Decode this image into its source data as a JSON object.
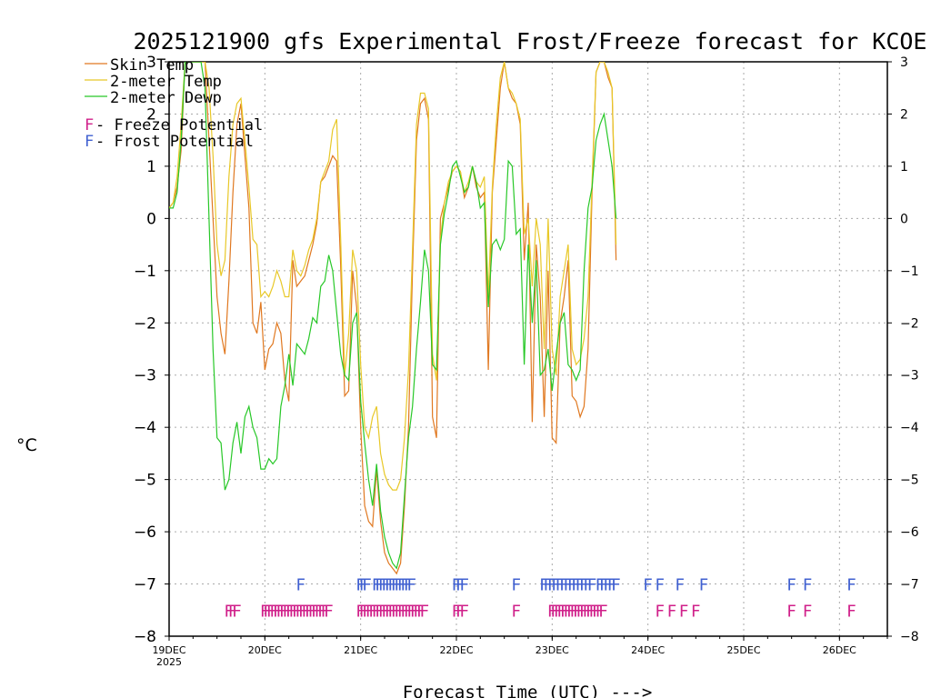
{
  "chart_data": {
    "type": "line",
    "title": "2025121900 gfs Experimental Frost/Freeze forecast for KCOE",
    "xlabel": "Forecast Time (UTC) --->",
    "ylabel": "°C",
    "ylim": [
      -8,
      3
    ],
    "xlim": [
      0,
      180
    ],
    "yticks": [
      -8,
      -7,
      -6,
      -5,
      -4,
      -3,
      -2,
      -1,
      0,
      1,
      2,
      3
    ],
    "xticks": [
      {
        "hour": 0,
        "label": "19DEC",
        "sub": "2025"
      },
      {
        "hour": 24,
        "label": "20DEC"
      },
      {
        "hour": 48,
        "label": "21DEC"
      },
      {
        "hour": 72,
        "label": "22DEC"
      },
      {
        "hour": 96,
        "label": "23DEC"
      },
      {
        "hour": 120,
        "label": "24DEC"
      },
      {
        "hour": 144,
        "label": "25DEC"
      },
      {
        "hour": 168,
        "label": "26DEC"
      }
    ],
    "grid": true,
    "colors": {
      "skin": "#e07820",
      "temp": "#e8c828",
      "dewp": "#28c828",
      "freeze": "#d0208a",
      "frost": "#4060d0"
    },
    "legend": [
      {
        "label": "Skin Temp",
        "color": "#e07820"
      },
      {
        "label": "2-meter Temp",
        "color": "#e8c828"
      },
      {
        "label": "2-meter Dewp",
        "color": "#28c828"
      }
    ],
    "flag_legend": [
      {
        "letter": "F",
        "text": " - Freeze Potential",
        "color": "#d0208a"
      },
      {
        "letter": "F",
        "text": " - Frost Potential",
        "color": "#4060d0"
      }
    ],
    "series": [
      {
        "name": "Skin Temp",
        "key": "skin",
        "x": [
          0,
          1,
          2,
          3,
          4,
          5,
          6,
          7,
          8,
          9,
          10,
          11,
          12,
          13,
          14,
          15,
          16,
          17,
          18,
          19,
          20,
          21,
          22,
          23,
          24,
          25,
          26,
          27,
          28,
          29,
          30,
          31,
          32,
          33,
          34,
          35,
          36,
          37,
          38,
          39,
          40,
          41,
          42,
          43,
          44,
          45,
          46,
          47,
          48,
          49,
          50,
          51,
          52,
          53,
          54,
          55,
          56,
          57,
          58,
          59,
          60,
          61,
          62,
          63,
          64,
          65,
          66,
          67,
          68,
          69,
          70,
          71,
          72,
          73,
          74,
          75,
          76,
          77,
          78,
          79,
          80,
          81,
          82,
          83,
          84,
          85,
          86,
          87,
          88,
          89,
          90,
          91,
          92,
          93,
          94,
          95,
          96,
          97,
          98,
          99,
          100,
          101,
          102,
          103,
          104,
          105,
          106,
          107,
          108,
          109,
          110,
          111,
          112,
          113,
          114,
          115,
          116,
          117,
          118,
          119,
          120
        ],
        "y": [
          0.2,
          0.3,
          0.6,
          1.3,
          3.0,
          3.0,
          3.0,
          3.0,
          3.0,
          3.0,
          1.5,
          0.0,
          -1.5,
          -2.2,
          -2.6,
          -1.2,
          0.5,
          1.8,
          2.2,
          1.2,
          0.2,
          -2.0,
          -2.2,
          -1.6,
          -2.9,
          -2.5,
          -2.4,
          -2.0,
          -2.2,
          -3.1,
          -3.5,
          -0.8,
          -1.3,
          -1.2,
          -1.1,
          -0.8,
          -0.5,
          -0.1,
          0.7,
          0.8,
          1.0,
          1.2,
          1.1,
          -0.9,
          -3.4,
          -3.3,
          -1.0,
          -1.7,
          -4.0,
          -5.5,
          -5.8,
          -5.9,
          -4.8,
          -5.8,
          -6.4,
          -6.6,
          -6.7,
          -6.8,
          -6.6,
          -5.5,
          -4.0,
          -1.0,
          1.5,
          2.2,
          2.3,
          1.9,
          -3.8,
          -4.2,
          0.0,
          0.3,
          0.6,
          0.9,
          1.0,
          0.9,
          0.4,
          0.6,
          1.0,
          0.6,
          0.4,
          0.5,
          -2.9,
          0.5,
          1.5,
          2.5,
          3.0,
          2.5,
          2.3,
          2.2,
          1.8,
          -0.8,
          0.3,
          -3.9,
          -0.5,
          -1.5,
          -3.8,
          -1.0,
          -4.2,
          -4.3,
          -2.0,
          -1.5,
          -0.8,
          -3.4,
          -3.5,
          -3.8,
          -3.6,
          -2.5,
          0.5,
          2.8,
          3.0,
          3.0,
          2.7,
          2.5,
          -0.8,
          null,
          null,
          null,
          null,
          null,
          null,
          null,
          null
        ]
      },
      {
        "name": "2-meter Temp",
        "key": "temp",
        "x": [
          0,
          1,
          2,
          3,
          4,
          5,
          6,
          7,
          8,
          9,
          10,
          11,
          12,
          13,
          14,
          15,
          16,
          17,
          18,
          19,
          20,
          21,
          22,
          23,
          24,
          25,
          26,
          27,
          28,
          29,
          30,
          31,
          32,
          33,
          34,
          35,
          36,
          37,
          38,
          39,
          40,
          41,
          42,
          43,
          44,
          45,
          46,
          47,
          48,
          49,
          50,
          51,
          52,
          53,
          54,
          55,
          56,
          57,
          58,
          59,
          60,
          61,
          62,
          63,
          64,
          65,
          66,
          67,
          68,
          69,
          70,
          71,
          72,
          73,
          74,
          75,
          76,
          77,
          78,
          79,
          80,
          81,
          82,
          83,
          84,
          85,
          86,
          87,
          88,
          89,
          90,
          91,
          92,
          93,
          94,
          95,
          96,
          97,
          98,
          99,
          100,
          101,
          102,
          103,
          104,
          105,
          106,
          107,
          108,
          109,
          110,
          111,
          112,
          113,
          114,
          115,
          116,
          117,
          118,
          119,
          120
        ],
        "y": [
          0.2,
          0.3,
          0.8,
          1.8,
          3.0,
          3.0,
          3.0,
          3.0,
          3.0,
          3.0,
          2.5,
          1.2,
          -0.5,
          -1.1,
          -0.8,
          0.8,
          1.8,
          2.2,
          2.3,
          1.5,
          0.6,
          -0.4,
          -0.5,
          -1.5,
          -1.4,
          -1.5,
          -1.3,
          -1.0,
          -1.2,
          -1.5,
          -1.5,
          -0.6,
          -1.0,
          -1.1,
          -0.9,
          -0.6,
          -0.4,
          0.0,
          0.7,
          0.9,
          1.1,
          1.7,
          1.9,
          -0.4,
          -3.0,
          -2.2,
          -0.6,
          -1.0,
          -2.8,
          -4.0,
          -4.2,
          -3.8,
          -3.6,
          -4.5,
          -4.9,
          -5.1,
          -5.2,
          -5.2,
          -5.0,
          -4.2,
          -2.9,
          -0.6,
          1.8,
          2.4,
          2.4,
          2.1,
          -2.6,
          -3.1,
          -0.4,
          0.3,
          0.7,
          0.9,
          1.0,
          0.9,
          0.5,
          0.7,
          1.0,
          0.7,
          0.6,
          0.8,
          -1.5,
          0.6,
          1.8,
          2.7,
          3.0,
          2.5,
          2.4,
          2.2,
          1.9,
          -0.3,
          0.0,
          -1.3,
          0.0,
          -0.5,
          -2.5,
          0.0,
          -2.5,
          -3.0,
          -1.5,
          -1.0,
          -0.5,
          -2.5,
          -2.8,
          -2.7,
          -2.3,
          -1.5,
          0.7,
          2.8,
          3.0,
          3.0,
          2.8,
          2.5,
          -0.5,
          null,
          null,
          null,
          null,
          null,
          null,
          null,
          null
        ]
      },
      {
        "name": "2-meter Dewp",
        "key": "dewp",
        "x": [
          0,
          1,
          2,
          3,
          4,
          5,
          6,
          7,
          8,
          9,
          10,
          11,
          12,
          13,
          14,
          15,
          16,
          17,
          18,
          19,
          20,
          21,
          22,
          23,
          24,
          25,
          26,
          27,
          28,
          29,
          30,
          31,
          32,
          33,
          34,
          35,
          36,
          37,
          38,
          39,
          40,
          41,
          42,
          43,
          44,
          45,
          46,
          47,
          48,
          49,
          50,
          51,
          52,
          53,
          54,
          55,
          56,
          57,
          58,
          59,
          60,
          61,
          62,
          63,
          64,
          65,
          66,
          67,
          68,
          69,
          70,
          71,
          72,
          73,
          74,
          75,
          76,
          77,
          78,
          79,
          80,
          81,
          82,
          83,
          84,
          85,
          86,
          87,
          88,
          89,
          90,
          91,
          92,
          93,
          94,
          95,
          96,
          97,
          98,
          99,
          100,
          101,
          102,
          103,
          104,
          105,
          106,
          107,
          108,
          109,
          110,
          111,
          112,
          113,
          114,
          115,
          116,
          117,
          118,
          119,
          120
        ],
        "y": [
          0.2,
          0.2,
          0.5,
          1.5,
          3.0,
          3.0,
          3.0,
          3.0,
          3.0,
          2.5,
          0.0,
          -2.5,
          -4.2,
          -4.3,
          -5.2,
          -5.0,
          -4.3,
          -3.9,
          -4.5,
          -3.8,
          -3.6,
          -4.0,
          -4.2,
          -4.8,
          -4.8,
          -4.6,
          -4.7,
          -4.6,
          -3.6,
          -3.2,
          -2.6,
          -3.2,
          -2.4,
          -2.5,
          -2.6,
          -2.3,
          -1.9,
          -2.0,
          -1.3,
          -1.2,
          -0.7,
          -1.0,
          -1.8,
          -2.6,
          -3.0,
          -3.1,
          -2.0,
          -1.8,
          -3.5,
          -4.3,
          -5.0,
          -5.5,
          -4.7,
          -5.6,
          -6.1,
          -6.4,
          -6.6,
          -6.7,
          -6.4,
          -5.3,
          -4.2,
          -3.6,
          -2.5,
          -1.6,
          -0.6,
          -1.0,
          -2.8,
          -2.9,
          -0.5,
          0.1,
          0.5,
          1.0,
          1.1,
          0.8,
          0.5,
          0.6,
          1.0,
          0.7,
          0.2,
          0.3,
          -1.7,
          -0.5,
          -0.4,
          -0.6,
          -0.4,
          1.1,
          1.0,
          -0.3,
          -0.2,
          -2.8,
          -0.5,
          -2.0,
          -0.8,
          -3.0,
          -2.9,
          -2.5,
          -3.3,
          -2.6,
          -2.0,
          -1.8,
          -2.8,
          -2.9,
          -3.1,
          -2.9,
          -1.0,
          0.2,
          0.6,
          1.5,
          1.8,
          2.0,
          1.5,
          1.0,
          0.0,
          null,
          null,
          null,
          null,
          null,
          null,
          null,
          null
        ]
      }
    ],
    "freeze_flags": [
      15,
      16,
      17,
      24,
      24.8,
      25.6,
      26.4,
      27.2,
      28,
      28.8,
      29.6,
      30.4,
      31.2,
      32,
      32.8,
      33.6,
      34.4,
      35.2,
      36,
      36.8,
      37.6,
      38.4,
      39.2,
      40,
      48,
      48.8,
      49.6,
      50.4,
      51.2,
      52,
      52.8,
      53.6,
      54.4,
      55.2,
      56,
      56.8,
      57.6,
      58.4,
      59.2,
      60,
      60.8,
      61.6,
      62.4,
      63.2,
      64,
      72,
      73,
      74,
      87,
      96,
      96.8,
      97.6,
      98.4,
      99.2,
      100,
      100.8,
      101.6,
      102.4,
      103.2,
      104,
      104.8,
      105.6,
      106.4,
      107.2,
      108,
      108.8,
      123,
      126,
      129,
      132,
      156,
      160,
      171
    ],
    "frost_flags": [
      33,
      48,
      48.8,
      49.6,
      52,
      52.8,
      53.6,
      54.4,
      55.2,
      56,
      56.8,
      57.6,
      58.4,
      59.2,
      60,
      60.8,
      72,
      73,
      74,
      87,
      94,
      95,
      96,
      97,
      98,
      99,
      100,
      101,
      102,
      103,
      104,
      105,
      106,
      108,
      109,
      110,
      111,
      112,
      120,
      123,
      128,
      134,
      156,
      160,
      171
    ],
    "flag_letter": "F"
  }
}
